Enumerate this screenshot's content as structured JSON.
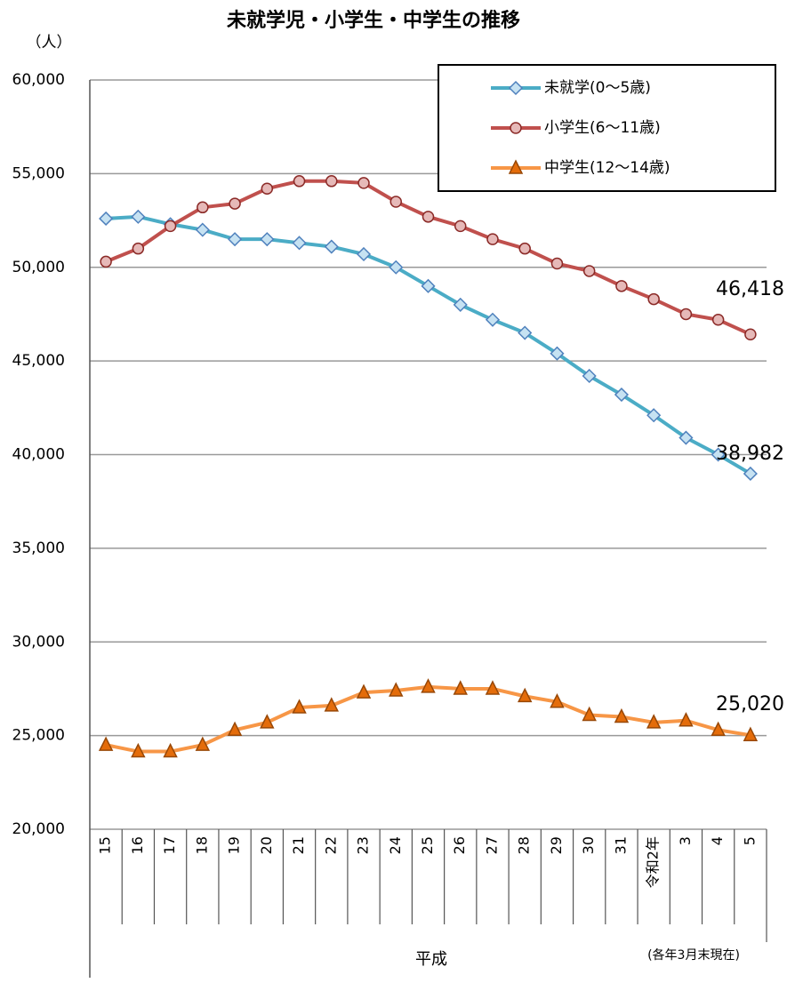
{
  "chart_data": {
    "type": "line",
    "title": "未就学児・小学生・中学生の推移",
    "y_unit": "（人）",
    "x_label": "平成",
    "note": "(各年3月末現在)",
    "categories": [
      "15",
      "16",
      "17",
      "18",
      "19",
      "20",
      "21",
      "22",
      "23",
      "24",
      "25",
      "26",
      "27",
      "28",
      "29",
      "30",
      "31",
      "令和2年",
      "3",
      "4",
      "5"
    ],
    "series": [
      {
        "name": "未就学(0～5歳)",
        "color": "#4bacc6",
        "marker": "diamond",
        "values": [
          52600,
          52700,
          52300,
          52000,
          51500,
          51500,
          51300,
          51100,
          50700,
          50000,
          49000,
          48000,
          47200,
          46500,
          45400,
          44200,
          43200,
          42100,
          40900,
          40000,
          38982
        ],
        "value_labels": [
          null,
          null,
          null,
          null,
          null,
          null,
          null,
          null,
          null,
          null,
          null,
          null,
          null,
          null,
          null,
          null,
          null,
          null,
          null,
          null,
          "38,982"
        ]
      },
      {
        "name": "小学生(6～11歳)",
        "color": "#c0504d",
        "marker": "circle",
        "values": [
          50300,
          51000,
          52200,
          53200,
          53400,
          54200,
          54600,
          54600,
          54500,
          53500,
          52700,
          52200,
          51500,
          51000,
          50200,
          49800,
          49000,
          48300,
          47500,
          47200,
          46418
        ],
        "value_labels": [
          null,
          null,
          null,
          null,
          null,
          null,
          null,
          null,
          null,
          null,
          null,
          null,
          null,
          null,
          null,
          null,
          null,
          null,
          null,
          null,
          "46,418"
        ]
      },
      {
        "name": "中学生(12～14歳)",
        "color": "#f79646",
        "marker": "triangle",
        "values": [
          24500,
          24150,
          24150,
          24500,
          25300,
          25700,
          26500,
          26600,
          27300,
          27400,
          27600,
          27500,
          27500,
          27100,
          26800,
          26100,
          26000,
          25700,
          25800,
          25300,
          25020
        ],
        "value_labels": [
          null,
          null,
          null,
          null,
          null,
          null,
          null,
          null,
          null,
          null,
          null,
          null,
          null,
          null,
          null,
          null,
          null,
          null,
          null,
          null,
          "25,020"
        ]
      }
    ],
    "ylim": [
      20000,
      60000
    ],
    "yticks": [
      {
        "value": 20000,
        "label": "20,000"
      },
      {
        "value": 25000,
        "label": "25,000"
      },
      {
        "value": 30000,
        "label": "30,000"
      },
      {
        "value": 35000,
        "label": "35,000"
      },
      {
        "value": 40000,
        "label": "40,000"
      },
      {
        "value": 45000,
        "label": "45,000"
      },
      {
        "value": 50000,
        "label": "50,000"
      },
      {
        "value": 55000,
        "label": "55,000"
      },
      {
        "value": 60000,
        "label": "60,000"
      }
    ],
    "grid": true,
    "legend": "upper right"
  }
}
